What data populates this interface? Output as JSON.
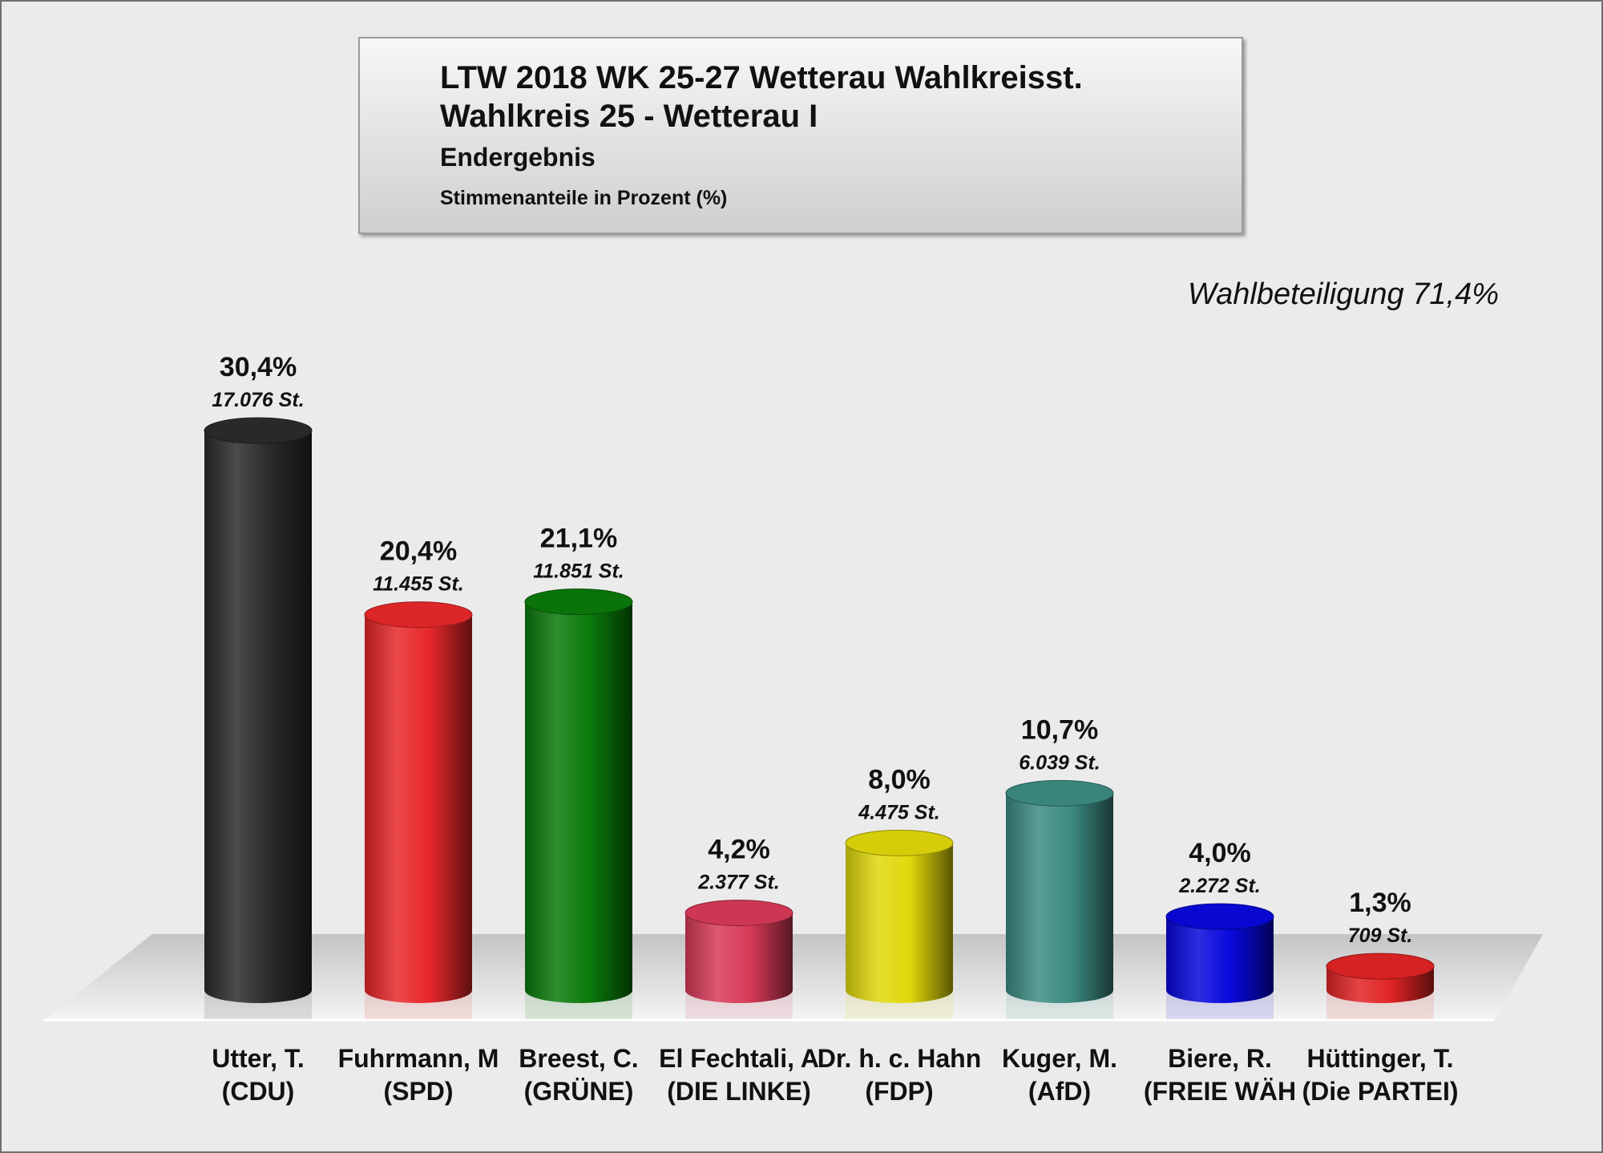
{
  "header": {
    "title_line1": "LTW 2018 WK 25-27 Wetterau Wahlkreisst.",
    "title_line2": "Wahlkreis 25 - Wetterau I",
    "subtitle": "Endergebnis",
    "unit_note": "Stimmenanteile in Prozent (%)"
  },
  "turnout": "Wahlbeteiligung 71,4%",
  "chart_data": {
    "type": "bar",
    "title": "LTW 2018 WK 25-27 Wetterau Wahlkreisst.",
    "ylim": [
      0,
      32
    ],
    "grid": false,
    "categories": [
      {
        "name": "Utter, T.",
        "party": "(CDU)"
      },
      {
        "name": "Fuhrmann, M",
        "party": "(SPD)"
      },
      {
        "name": "Breest, C.",
        "party": "(GRÜNE)"
      },
      {
        "name": "El Fechtali, A",
        "party": "(DIE LINKE)"
      },
      {
        "name": "Dr. h. c. Hahn",
        "party": "(FDP)"
      },
      {
        "name": "Kuger, M.",
        "party": "(AfD)"
      },
      {
        "name": "Biere, R.",
        "party": "(FREIE WÄH"
      },
      {
        "name": "Hüttinger, T.",
        "party": "(Die PARTEI)"
      }
    ],
    "values": [
      30.4,
      20.4,
      21.1,
      4.2,
      8.0,
      10.7,
      4.0,
      1.3
    ],
    "value_labels": [
      "30,4%",
      "20,4%",
      "21,1%",
      "4,2%",
      "8,0%",
      "10,7%",
      "4,0%",
      "1,3%"
    ],
    "votes_labels": [
      "17.076 St.",
      "11.455 St.",
      "11.851 St.",
      "2.377 St.",
      "4.475 St.",
      "6.039 St.",
      "2.272 St.",
      "709 St."
    ],
    "colors": [
      "#2b2b2b",
      "#e8282a",
      "#0a7a0a",
      "#d83a58",
      "#e0d80a",
      "#3c8c82",
      "#0808dc",
      "#e02424"
    ]
  }
}
